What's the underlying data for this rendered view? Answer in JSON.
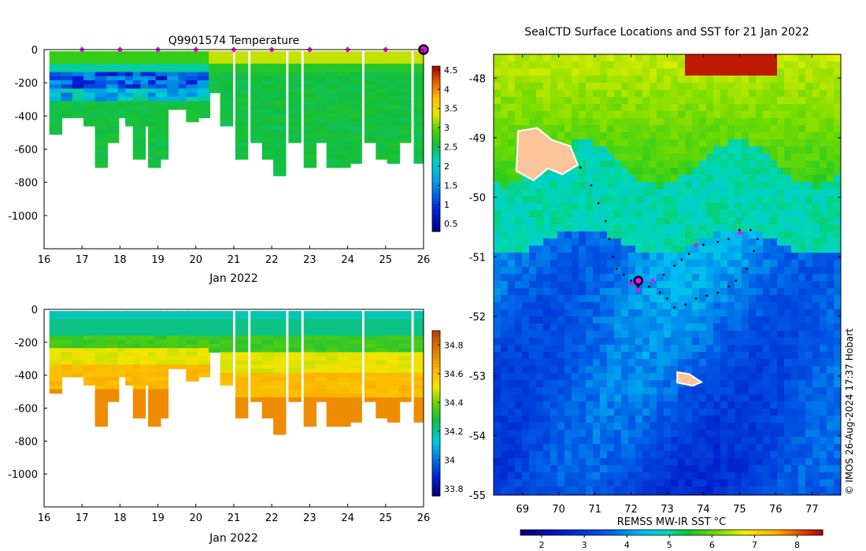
{
  "chart_data": [
    {
      "type": "heatmap",
      "title": "Q9901574  Temperature",
      "xlabel": "Jan 2022",
      "ylabel": "",
      "xlim": [
        16,
        26
      ],
      "ylim": [
        -1200,
        0
      ],
      "x_ticks": [
        "16",
        "17",
        "18",
        "19",
        "20",
        "21",
        "22",
        "23",
        "24",
        "25",
        "26"
      ],
      "y_ticks": [
        "0",
        "-200",
        "-400",
        "-600",
        "-800",
        "-1000"
      ],
      "colorbar": {
        "min": 0.3,
        "max": 4.6,
        "ticks": [
          "0.5",
          "1",
          "1.5",
          "2",
          "2.5",
          "3",
          "3.5",
          "4",
          "4.5"
        ]
      },
      "surface_markers_x": [
        17,
        18,
        19,
        20,
        21,
        22,
        23,
        24,
        25
      ],
      "current_marker_x": 26,
      "profiles": [
        {
          "x": 16.3,
          "max_depth": 500
        },
        {
          "x": 16.6,
          "max_depth": 400
        },
        {
          "x": 16.9,
          "max_depth": 400
        },
        {
          "x": 17.2,
          "max_depth": 450
        },
        {
          "x": 17.5,
          "max_depth": 700
        },
        {
          "x": 17.8,
          "max_depth": 540
        },
        {
          "x": 18.1,
          "max_depth": 400
        },
        {
          "x": 18.3,
          "max_depth": 450
        },
        {
          "x": 18.5,
          "max_depth": 640
        },
        {
          "x": 18.7,
          "max_depth": 450
        },
        {
          "x": 18.9,
          "max_depth": 690
        },
        {
          "x": 19.1,
          "max_depth": 660
        },
        {
          "x": 19.4,
          "max_depth": 350
        },
        {
          "x": 19.7,
          "max_depth": 350
        },
        {
          "x": 19.9,
          "max_depth": 420
        },
        {
          "x": 20.2,
          "max_depth": 400
        },
        {
          "x": 20.5,
          "max_depth": 250
        },
        {
          "x": 20.8,
          "max_depth": 450
        },
        {
          "x": 21.2,
          "max_depth": 640
        },
        {
          "x": 21.6,
          "max_depth": 540
        },
        {
          "x": 21.9,
          "max_depth": 650
        },
        {
          "x": 22.2,
          "max_depth": 760
        },
        {
          "x": 22.6,
          "max_depth": 550
        },
        {
          "x": 23.0,
          "max_depth": 700
        },
        {
          "x": 23.3,
          "max_depth": 550
        },
        {
          "x": 23.6,
          "max_depth": 700
        },
        {
          "x": 23.9,
          "max_depth": 690
        },
        {
          "x": 24.2,
          "max_depth": 680
        },
        {
          "x": 24.6,
          "max_depth": 560
        },
        {
          "x": 24.9,
          "max_depth": 650
        },
        {
          "x": 25.2,
          "max_depth": 670
        },
        {
          "x": 25.5,
          "max_depth": 540
        },
        {
          "x": 25.9,
          "max_depth": 680
        }
      ]
    },
    {
      "type": "heatmap",
      "title": "",
      "xlabel": "Jan 2022",
      "ylabel": "",
      "xlim": [
        16,
        26
      ],
      "ylim": [
        -1200,
        0
      ],
      "x_ticks": [
        "16",
        "17",
        "18",
        "19",
        "20",
        "21",
        "22",
        "23",
        "24",
        "25",
        "26"
      ],
      "y_ticks": [
        "0",
        "-200",
        "-400",
        "-600",
        "-800",
        "-1000"
      ],
      "colorbar": {
        "min": 33.75,
        "max": 34.9,
        "ticks": [
          "33.8",
          "34",
          "34.2",
          "34.4",
          "34.6",
          "34.8"
        ]
      }
    },
    {
      "type": "heatmap",
      "title": "SealCTD Surface Locations and SST for 21 Jan 2022",
      "xlabel": "",
      "ylabel": "",
      "xlim": [
        68.2,
        77.8
      ],
      "ylim": [
        -55,
        -47.6
      ],
      "x_ticks": [
        "69",
        "70",
        "71",
        "72",
        "73",
        "74",
        "75",
        "76",
        "77"
      ],
      "y_ticks": [
        "-48",
        "-49",
        "-50",
        "-51",
        "-52",
        "-53",
        "-54",
        "-55"
      ],
      "colorbar": {
        "label": "REMSS MW-IR SST °C",
        "min": 1.5,
        "max": 8.6,
        "ticks": [
          "2",
          "3",
          "4",
          "5",
          "6",
          "7",
          "8"
        ]
      },
      "track": [
        [
          70.6,
          -49.5
        ],
        [
          70.9,
          -49.8
        ],
        [
          71.1,
          -50.1
        ],
        [
          71.3,
          -50.4
        ],
        [
          71.4,
          -50.7
        ],
        [
          71.5,
          -51.0
        ],
        [
          71.6,
          -51.2
        ],
        [
          71.8,
          -51.3
        ],
        [
          72.0,
          -51.4
        ],
        [
          72.2,
          -51.5
        ],
        [
          72.5,
          -51.5
        ],
        [
          72.8,
          -51.6
        ],
        [
          73.0,
          -51.7
        ],
        [
          73.2,
          -51.85
        ],
        [
          73.5,
          -51.8
        ],
        [
          73.8,
          -51.7
        ],
        [
          74.1,
          -51.65
        ],
        [
          74.4,
          -51.6
        ],
        [
          74.7,
          -51.5
        ],
        [
          74.9,
          -51.4
        ],
        [
          75.2,
          -51.2
        ],
        [
          75.4,
          -50.9
        ],
        [
          75.5,
          -50.7
        ],
        [
          75.3,
          -50.55
        ],
        [
          75.0,
          -50.55
        ],
        [
          74.7,
          -50.7
        ],
        [
          74.4,
          -50.75
        ],
        [
          74.0,
          -50.8
        ],
        [
          73.6,
          -50.95
        ],
        [
          73.4,
          -51.05
        ],
        [
          73.2,
          -51.15
        ],
        [
          72.9,
          -51.3
        ],
        [
          72.6,
          -51.4
        ]
      ],
      "daily_positions": [
        [
          72.0,
          -51.45
        ],
        [
          72.2,
          -51.55
        ],
        [
          72.6,
          -51.4
        ],
        [
          73.8,
          -50.8
        ],
        [
          75.0,
          -50.6
        ]
      ],
      "current_position": [
        72.2,
        -51.4
      ]
    }
  ],
  "labels": {
    "watermark": "© IMOS 26-Aug-2024 17:37 Hobart"
  }
}
